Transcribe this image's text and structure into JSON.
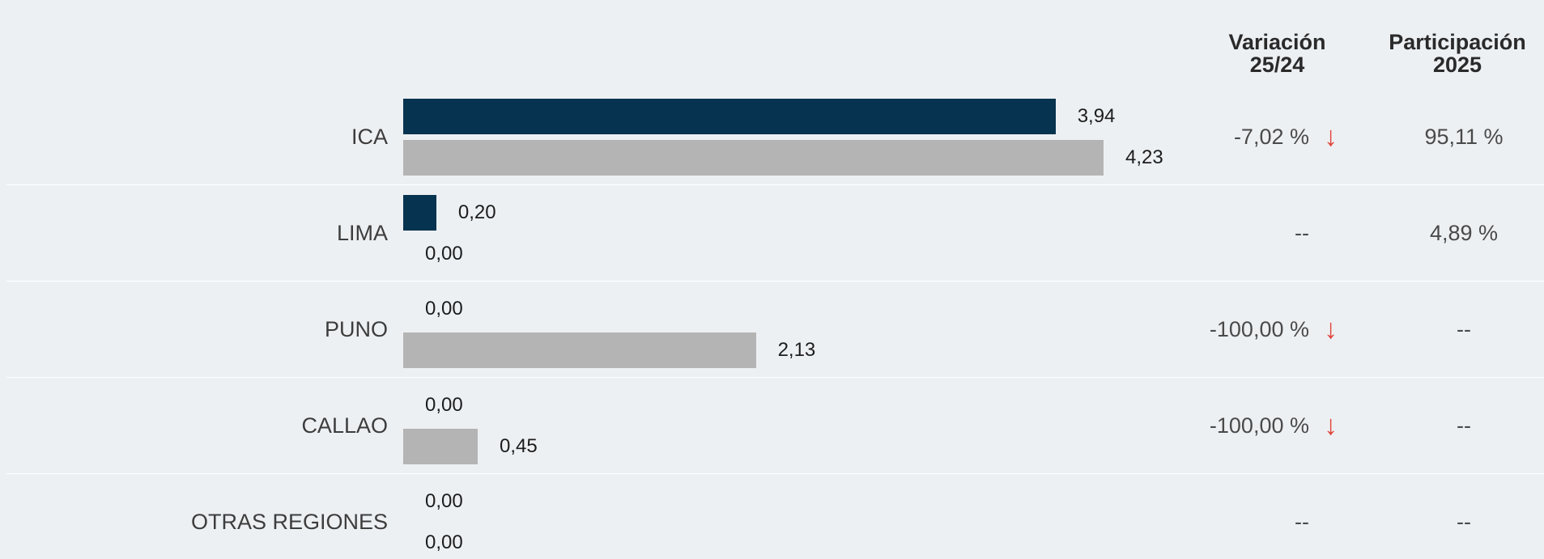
{
  "chart_data": {
    "type": "bar",
    "orientation": "horizontal",
    "categories": [
      "ICA",
      "LIMA",
      "PUNO",
      "CALLAO",
      "OTRAS REGIONES"
    ],
    "series": [
      {
        "values": [
          3.94,
          0.2,
          0.0,
          0.0,
          0.0
        ],
        "color": "#06334f"
      },
      {
        "values": [
          4.23,
          0.0,
          2.13,
          0.45,
          0.0
        ],
        "color": "#b4b4b4"
      }
    ],
    "value_labels_2025": [
      "3,94",
      "0,20",
      "0,00",
      "0,00",
      "0,00"
    ],
    "value_labels_2024": [
      "4,23",
      "0,00",
      "2,13",
      "0,45",
      "0,00"
    ],
    "xlim": [
      0,
      4.23
    ],
    "grid": false,
    "legend": "none"
  },
  "columns": {
    "variation": {
      "line1": "Variación",
      "line2": "25/24"
    },
    "participation": {
      "line1": "Participación",
      "line2": "2025"
    }
  },
  "rows": [
    {
      "variation": "-7,02 %",
      "trend": "down",
      "participation": "95,11 %"
    },
    {
      "variation": "--",
      "trend": "none",
      "participation": "4,89 %"
    },
    {
      "variation": "-100,00 %",
      "trend": "down",
      "participation": "--"
    },
    {
      "variation": "-100,00 %",
      "trend": "down",
      "participation": "--"
    },
    {
      "variation": "--",
      "trend": "none",
      "participation": "--"
    }
  ],
  "icons": {
    "down": "arrow-down-icon",
    "arrow_glyph": "↓",
    "arrow_color": "#e0443b"
  }
}
